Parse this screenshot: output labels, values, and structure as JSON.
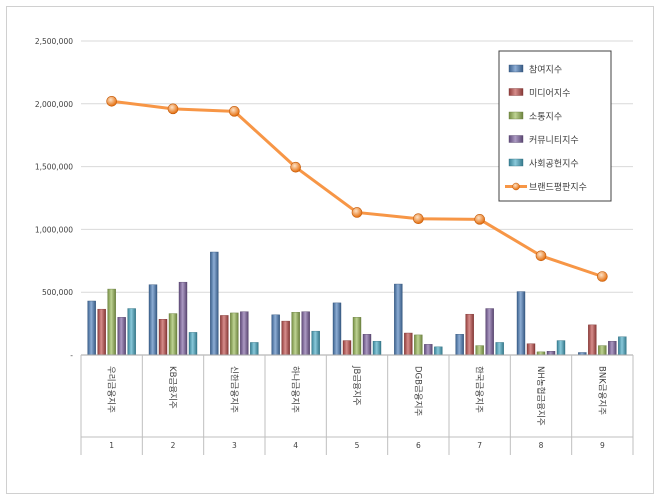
{
  "chart_data": {
    "type": "bar",
    "title": "",
    "xlabel": "",
    "ylabel": "",
    "ylim": [
      0,
      2500000
    ],
    "yticks": [
      0,
      500000,
      1000000,
      1500000,
      2000000,
      2500000
    ],
    "ytick_labels": [
      "-",
      "500,000",
      "1,000,000",
      "1,500,000",
      "2,000,000",
      "2,500,000"
    ],
    "grid": true,
    "legend_position": "top-right",
    "categories": [
      "우리금융지주",
      "KB금융지주",
      "신한금융지주",
      "하나금융지주",
      "JB금융지주",
      "DGB금융지주",
      "한국금융지주",
      "NH농협금융지주",
      "BNK금융지주"
    ],
    "category_numbers": [
      "1",
      "2",
      "3",
      "4",
      "5",
      "6",
      "7",
      "8",
      "9"
    ],
    "series": [
      {
        "name": "참여지수",
        "kind": "bar",
        "color": "#4f81bd",
        "values": [
          430000,
          560000,
          820000,
          320000,
          415000,
          565000,
          165000,
          505000,
          20000
        ]
      },
      {
        "name": "미디어지수",
        "kind": "bar",
        "color": "#c0504d",
        "values": [
          365000,
          285000,
          315000,
          270000,
          115000,
          175000,
          325000,
          90000,
          240000
        ]
      },
      {
        "name": "소통지수",
        "kind": "bar",
        "color": "#9bbb59",
        "values": [
          525000,
          330000,
          335000,
          340000,
          300000,
          160000,
          75000,
          25000,
          75000
        ]
      },
      {
        "name": "커뮤니티지수",
        "kind": "bar",
        "color": "#8064a2",
        "values": [
          300000,
          580000,
          345000,
          345000,
          165000,
          85000,
          370000,
          30000,
          110000
        ]
      },
      {
        "name": "사회공헌지수",
        "kind": "bar",
        "color": "#4bacc6",
        "values": [
          370000,
          180000,
          100000,
          190000,
          110000,
          65000,
          100000,
          115000,
          145000
        ]
      },
      {
        "name": "브랜드평판지수",
        "kind": "line",
        "color": "#f79646",
        "values": [
          2020000,
          1960000,
          1940000,
          1495000,
          1135000,
          1085000,
          1080000,
          790000,
          625000
        ]
      }
    ]
  }
}
